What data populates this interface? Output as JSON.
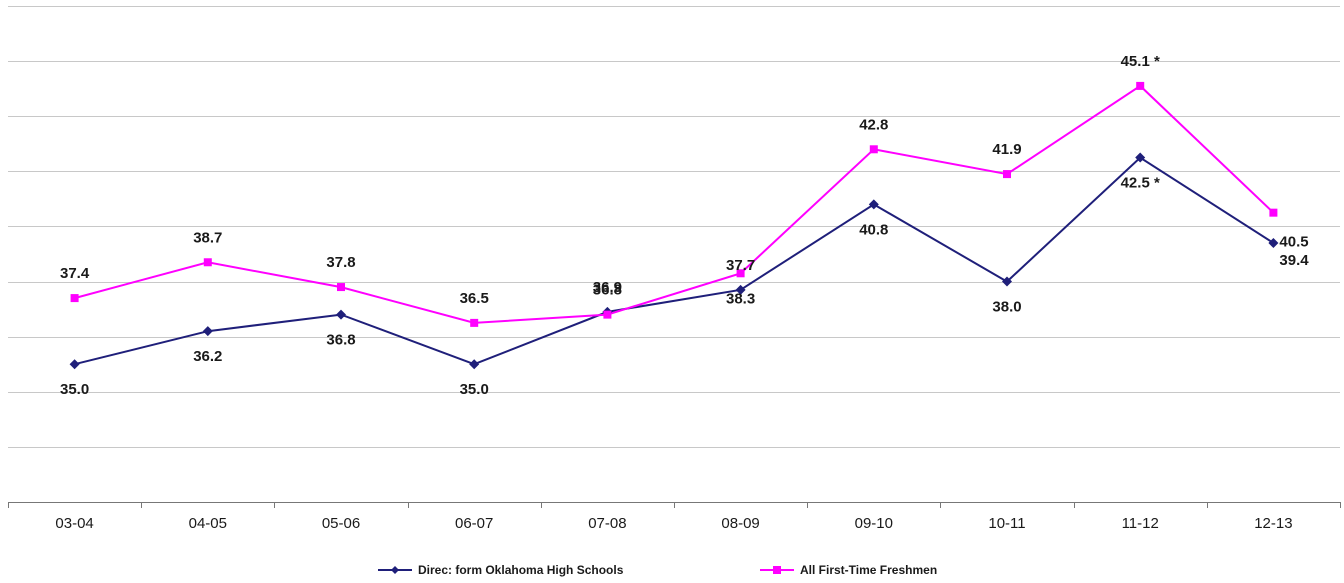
{
  "chart_data": {
    "type": "line",
    "title": "",
    "xlabel": "",
    "ylabel": "",
    "categories": [
      "03-04",
      "04-05",
      "05-06",
      "06-07",
      "07-08",
      "08-09",
      "09-10",
      "10-11",
      "11-12",
      "12-13"
    ],
    "ylim": [
      30,
      48
    ],
    "grid": true,
    "legend_position": "bottom",
    "series": [
      {
        "name": "Direc: form Oklahoma High Schools",
        "color": "#1f1f7a",
        "marker": "diamond",
        "values": [
          35.0,
          36.2,
          36.8,
          35.0,
          36.9,
          37.7,
          40.8,
          38.0,
          42.5,
          39.4
        ],
        "labels": [
          "35.0",
          "36.2",
          "36.8",
          "35.0",
          "36.9",
          "37.7",
          "40.8",
          "38.0",
          "42.5 *",
          "39.4"
        ]
      },
      {
        "name": "All First-Time Freshmen",
        "color": "#ff00ff",
        "marker": "square",
        "values": [
          37.4,
          38.7,
          37.8,
          36.5,
          36.8,
          38.3,
          42.8,
          41.9,
          45.1,
          40.5
        ],
        "labels": [
          "37.4",
          "38.7",
          "37.8",
          "36.5",
          "36.8",
          "38.3",
          "42.8",
          "41.9",
          "45.1 *",
          "40.5"
        ]
      }
    ]
  }
}
